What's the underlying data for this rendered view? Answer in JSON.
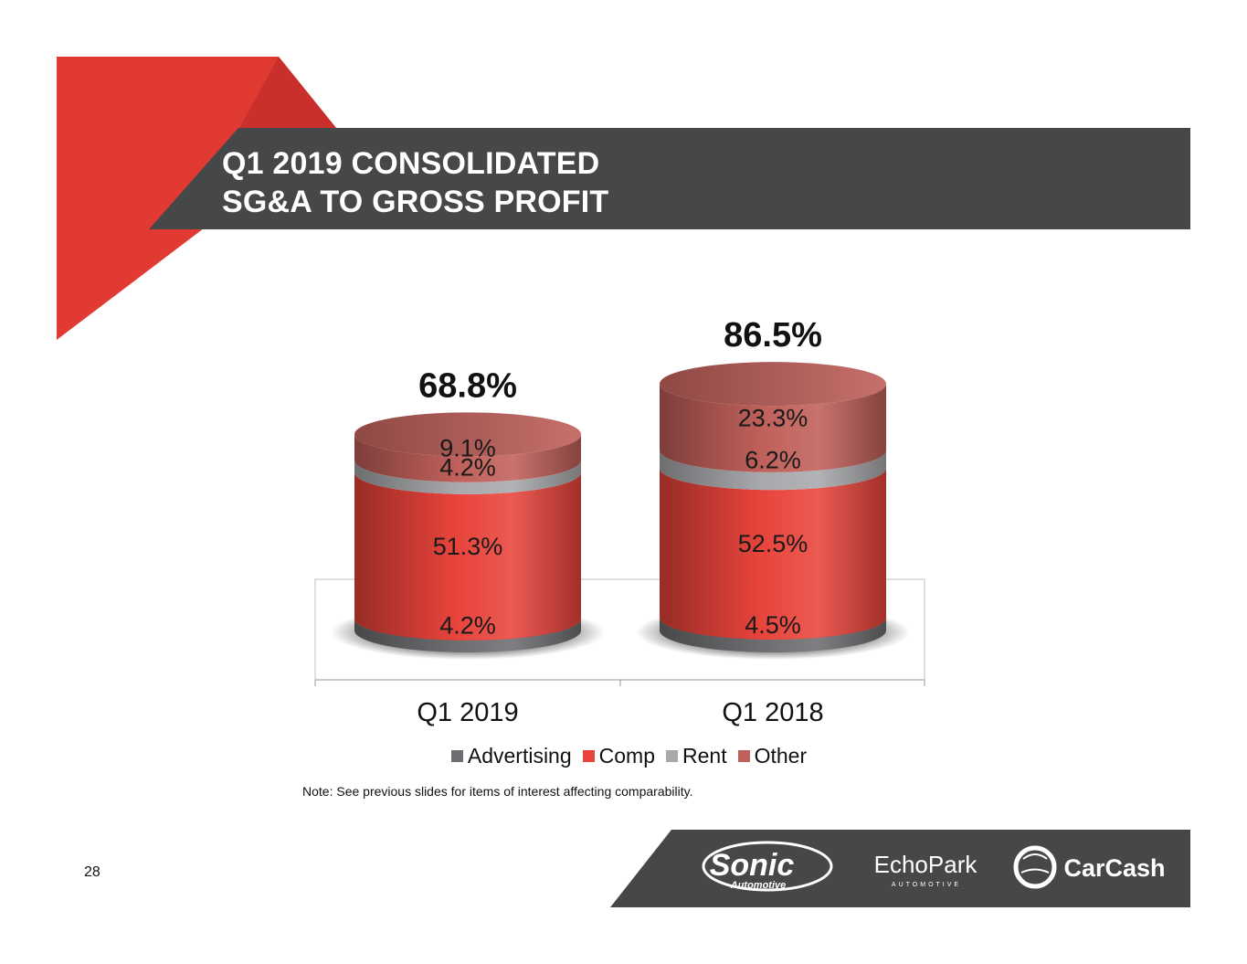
{
  "slide": {
    "title_lines": [
      "Q1 2019 CONSOLIDATED",
      "SG&A TO GROSS PROFIT"
    ],
    "note": "Note: See previous slides for items of interest affecting comparability.",
    "page_number": "28",
    "colors": {
      "accent_red": "#e03a33",
      "banner_gray": "#464749",
      "footer_gray": "#464749"
    }
  },
  "chart_data": {
    "type": "bar",
    "stacked": true,
    "style": "3d-cylinder",
    "categories": [
      "Q1 2019",
      "Q1 2018"
    ],
    "totals": [
      "68.8%",
      "86.5%"
    ],
    "series": [
      {
        "name": "Advertising",
        "values": [
          4.2,
          4.5
        ],
        "labels": [
          "4.2%",
          "4.5%"
        ],
        "color": "#6d6e71"
      },
      {
        "name": "Comp",
        "values": [
          51.3,
          52.5
        ],
        "labels": [
          "51.3%",
          "52.5%"
        ],
        "color": "#e8443b"
      },
      {
        "name": "Rent",
        "values": [
          4.2,
          6.2
        ],
        "labels": [
          "4.2%",
          "6.2%"
        ],
        "color": "#a7a9ac"
      },
      {
        "name": "Other",
        "values": [
          9.1,
          23.3
        ],
        "labels": [
          "9.1%",
          "23.3%"
        ],
        "color": "#c0605a"
      }
    ],
    "legend_position": "bottom",
    "grid": false
  },
  "logos": {
    "sonic": {
      "main": "Sonic",
      "sub": "Automotive"
    },
    "echopark": {
      "main": "EchoPark",
      "sub": "AUTOMOTIVE"
    },
    "carcash": {
      "main": "CarCash"
    }
  }
}
